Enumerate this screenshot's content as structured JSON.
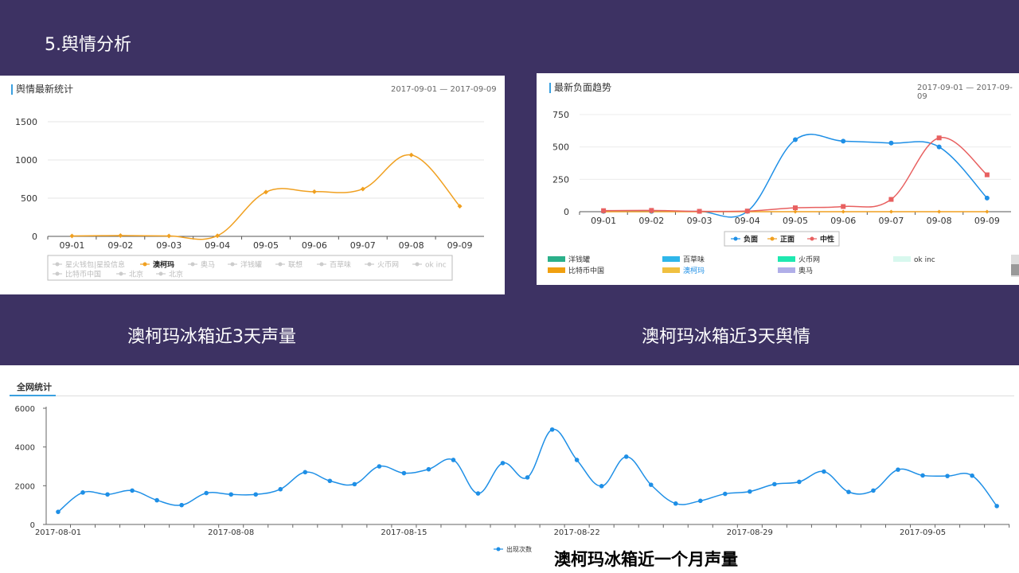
{
  "slide": {
    "title": "5.舆情分析",
    "caption_left": "澳柯玛冰箱近3天声量",
    "caption_right": "澳柯玛冰箱近3天舆情",
    "caption_bottom": "澳柯玛冰箱近一个月声量"
  },
  "panels": {
    "volume": {
      "title": "舆情最新统计",
      "date_range": "2017-09-01 — 2017-09-09"
    },
    "negative": {
      "title": "最新负面趋势",
      "date_range": "2017-09-01 — 2017-09-09"
    },
    "network": {
      "title": "全网统计"
    }
  },
  "colors": {
    "orange": "#f0a020",
    "blue": "#1e8fe6",
    "red": "#e86060",
    "bg": "#3d3263"
  },
  "chart_data": [
    {
      "type": "line",
      "title": "舆情最新统计",
      "categories": [
        "09-01",
        "09-02",
        "09-03",
        "09-04",
        "09-05",
        "09-06",
        "09-07",
        "09-08",
        "09-09"
      ],
      "ylim": [
        0,
        1500
      ],
      "yticks": [
        0,
        500,
        1000,
        1500
      ],
      "series": [
        {
          "name": "澳柯玛",
          "values": [
            5,
            10,
            5,
            8,
            580,
            585,
            620,
            1065,
            395
          ],
          "color": "#f0a020"
        }
      ],
      "legend": [
        "星火钱包|星投信息",
        "澳柯玛",
        "奥马",
        "洋钱罐",
        "联想",
        "百草味",
        "火币网",
        "ok inc",
        "比特币中国",
        "北京",
        "北京"
      ],
      "legend_active": "澳柯玛",
      "grid": true,
      "legend_placement": "bottom"
    },
    {
      "type": "line",
      "title": "最新负面趋势",
      "categories": [
        "09-01",
        "09-02",
        "09-03",
        "09-04",
        "09-05",
        "09-06",
        "09-07",
        "09-08",
        "09-09"
      ],
      "ylim": [
        0,
        750
      ],
      "yticks": [
        0,
        250,
        500,
        750
      ],
      "series": [
        {
          "name": "负面",
          "values": [
            2,
            2,
            2,
            2,
            556,
            545,
            530,
            500,
            105
          ],
          "color": "#1e8fe6",
          "marker": "circle"
        },
        {
          "name": "正面",
          "values": [
            0,
            0,
            0,
            0,
            0,
            0,
            0,
            0,
            0
          ],
          "color": "#f0a020",
          "marker": "diamond"
        },
        {
          "name": "中性",
          "values": [
            8,
            10,
            3,
            5,
            30,
            40,
            95,
            570,
            285
          ],
          "color": "#e86060",
          "marker": "square"
        }
      ],
      "legend_placement": "bottom",
      "grid": true,
      "extra_legend": [
        {
          "name": "洋钱罐",
          "color": "#2bb08a"
        },
        {
          "name": "百草味",
          "color": "#2fb6ea"
        },
        {
          "name": "火币网",
          "color": "#1ee8b0"
        },
        {
          "name": "ok inc",
          "color": "#d8f8ee"
        },
        {
          "name": "比特币中国",
          "color": "#f0a010"
        },
        {
          "name": "澳柯玛",
          "color": "#f0c040",
          "highlight": true
        },
        {
          "name": "奥马",
          "color": "#b0aee8"
        }
      ]
    },
    {
      "type": "line",
      "title": "全网统计",
      "x_start": "2017-08-01",
      "xtick_labels": [
        "2017-08-01",
        "2017-08-08",
        "2017-08-15",
        "2017-08-22",
        "2017-08-29",
        "2017-09-05"
      ],
      "ylim": [
        0,
        6000
      ],
      "yticks": [
        0,
        2000,
        4000,
        6000
      ],
      "series": [
        {
          "name": "出现次数",
          "color": "#1e8fe6",
          "values": [
            650,
            1650,
            1550,
            1750,
            1250,
            1000,
            1620,
            1550,
            1550,
            1820,
            2700,
            2250,
            2080,
            3000,
            2650,
            2850,
            3330,
            1600,
            3170,
            2430,
            4900,
            3330,
            1980,
            3500,
            2050,
            1080,
            1220,
            1580,
            1700,
            2080,
            2200,
            2730,
            1680,
            1750,
            2830,
            2530,
            2500,
            2520,
            950
          ]
        }
      ],
      "legend_placement": "bottom",
      "grid": false
    }
  ]
}
